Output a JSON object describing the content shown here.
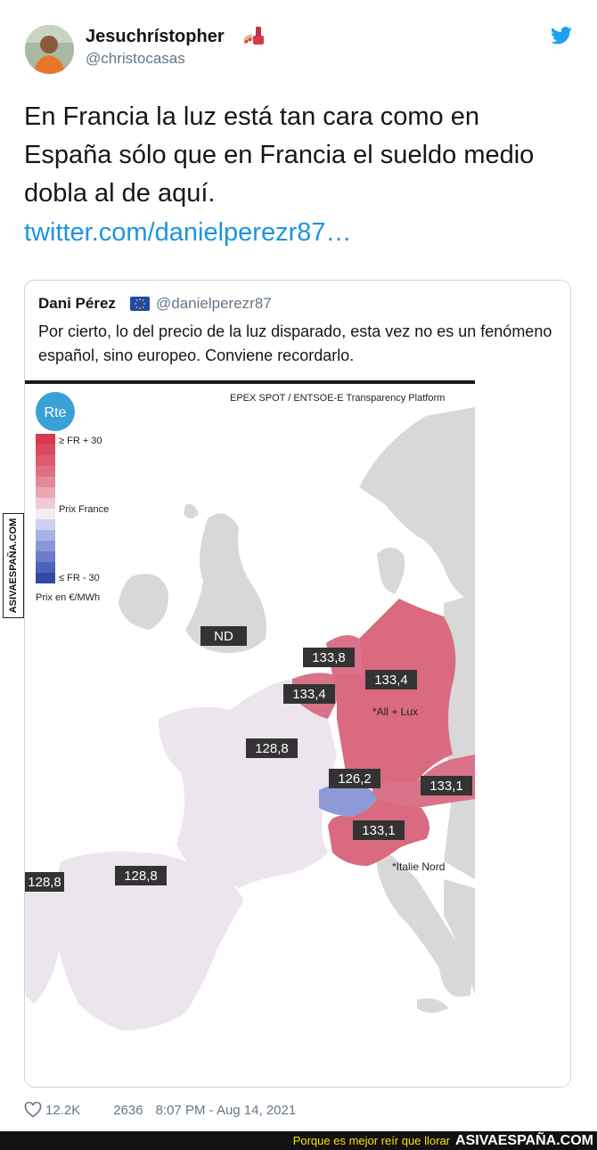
{
  "tweet": {
    "display_name": "Jesuchrístopher",
    "handle": "@christocasas",
    "text": "En Francia la luz está tan cara como en España sólo que en Francia el sueldo medio dobla al de aquí.",
    "link": "twitter.com/danielperezr87…",
    "likes": "12.2K",
    "retweets": "2636",
    "timestamp": "8:07 PM - Aug 14, 2021"
  },
  "quoted": {
    "display_name": "Dani Pérez",
    "handle": "@danielperezr87",
    "text": "Por cierto, lo del precio de la luz disparado, esta vez no es un fenómeno español, sino europeo. Conviene recordarlo."
  },
  "map": {
    "logo": "Rte",
    "source": "EPEX SPOT / ENTSOE-E Transparency Platform",
    "legend_top": "≥ FR + 30",
    "legend_mid": "Prix France",
    "legend_bottom": "≤ FR - 30",
    "legend_unit": "Prix en €/MWh",
    "labels": {
      "uk": "ND",
      "nl": "133,8",
      "be": "133,4",
      "de": "133,4",
      "de_note": "*All + Lux",
      "fr": "128,8",
      "ch": "126,2",
      "at": "133,1",
      "it": "133,1",
      "it_note": "*Italie Nord",
      "pt": "128,8",
      "es": "128,8"
    },
    "colors": {
      "high": "#d94a5f",
      "neutral": "#ece5ee",
      "low": "#4e62b8",
      "land": "#d8d8d8"
    }
  },
  "watermark": {
    "side": "ASIVAESPAÑA.COM",
    "slogan": "Porque es mejor reír que llorar",
    "site": "ASIVAESPAÑA.COM"
  }
}
